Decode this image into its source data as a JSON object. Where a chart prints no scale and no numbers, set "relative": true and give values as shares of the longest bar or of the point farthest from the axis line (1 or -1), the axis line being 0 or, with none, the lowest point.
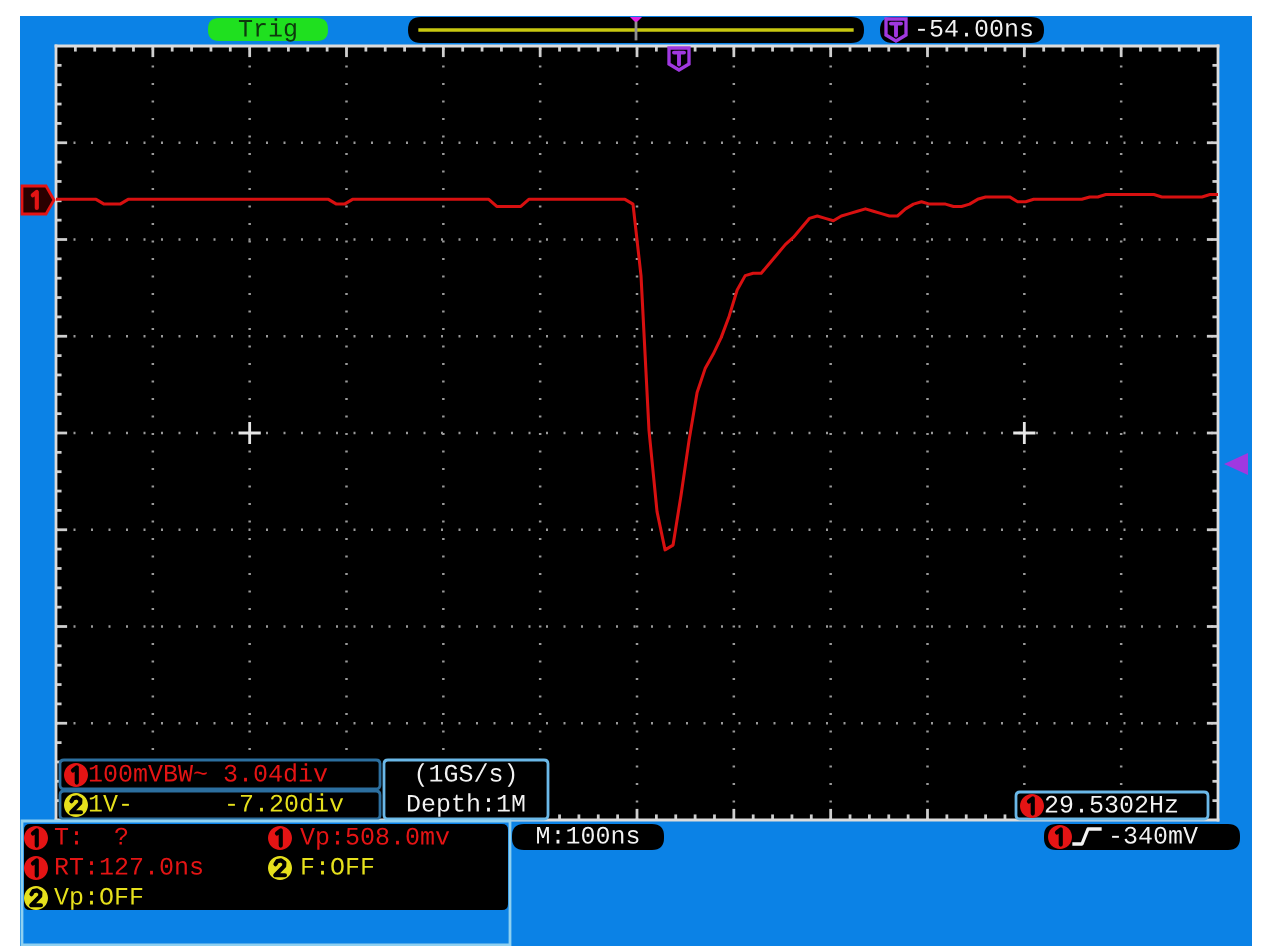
{
  "chart_data": {
    "type": "line",
    "relative": true,
    "grid": true,
    "categories": [
      null,
      null,
      null,
      null,
      null,
      null,
      null,
      null,
      null,
      null,
      null,
      null,
      null,
      null,
      null,
      null,
      null,
      null,
      null,
      null,
      null,
      null,
      null,
      null,
      null,
      null,
      null,
      null,
      null,
      null,
      null,
      null,
      null,
      null,
      null,
      null,
      null,
      null,
      null,
      null,
      null,
      null,
      null,
      null,
      null,
      null,
      null,
      null,
      null,
      null,
      null,
      null,
      null,
      null,
      null,
      null,
      null,
      null,
      null,
      null,
      null,
      null,
      null,
      null,
      null,
      null,
      null,
      null,
      null,
      null,
      null,
      null,
      null,
      null,
      null,
      null,
      null,
      null,
      null,
      null,
      null,
      null,
      null,
      null,
      null,
      null,
      null,
      null,
      null,
      null,
      null,
      null,
      null,
      null,
      null,
      null,
      null,
      null,
      null,
      null,
      null,
      null,
      null,
      null,
      null,
      null,
      null,
      null,
      null,
      null,
      null,
      null,
      null,
      null,
      null,
      null,
      null,
      null,
      null,
      null,
      null,
      null,
      null,
      null,
      null,
      null,
      null,
      null,
      null,
      null,
      null,
      null,
      null,
      null,
      null,
      null,
      null,
      null,
      null,
      null,
      null,
      null,
      null,
      null,
      null,
      null
    ],
    "series": [
      {
        "color": "#d81010",
        "values": [
          0.98,
          0.98,
          0.98,
          0.98,
          0.98,
          0.98,
          0.96,
          0.96,
          0.96,
          0.98,
          0.98,
          0.98,
          0.98,
          0.98,
          0.98,
          0.98,
          0.98,
          0.98,
          0.98,
          0.98,
          0.98,
          0.98,
          0.98,
          0.98,
          0.98,
          0.98,
          0.98,
          0.98,
          0.98,
          0.98,
          0.98,
          0.98,
          0.98,
          0.98,
          0.98,
          0.96,
          0.96,
          0.98,
          0.98,
          0.98,
          0.98,
          0.98,
          0.98,
          0.98,
          0.98,
          0.98,
          0.98,
          0.98,
          0.98,
          0.98,
          0.98,
          0.98,
          0.98,
          0.98,
          0.98,
          0.95,
          0.95,
          0.95,
          0.95,
          0.98,
          0.98,
          0.98,
          0.98,
          0.98,
          0.98,
          0.98,
          0.98,
          0.98,
          0.98,
          0.98,
          0.98,
          0.98,
          0.96,
          0.66,
          0.01,
          -0.33,
          -0.49,
          -0.47,
          -0.26,
          -0.03,
          0.17,
          0.27,
          0.33,
          0.4,
          0.49,
          0.6,
          0.66,
          0.67,
          0.67,
          0.71,
          0.75,
          0.79,
          0.82,
          0.86,
          0.9,
          0.91,
          0.9,
          0.89,
          0.91,
          0.92,
          0.93,
          0.94,
          0.93,
          0.92,
          0.91,
          0.91,
          0.94,
          0.96,
          0.97,
          0.96,
          0.96,
          0.96,
          0.95,
          0.95,
          0.96,
          0.98,
          0.99,
          0.99,
          0.99,
          0.99,
          0.97,
          0.97,
          0.98,
          0.98,
          0.98,
          0.98,
          0.98,
          0.98,
          0.98,
          0.99,
          0.99,
          1.0,
          1.0,
          1.0,
          1.0,
          1.0,
          1.0,
          1.0,
          0.99,
          0.99,
          0.99,
          0.99,
          0.99,
          0.99,
          1.0,
          1.0
        ]
      }
    ],
    "annotations": [
      "Trig",
      "-54.00ns",
      "100mVBW~ 3.04div",
      "1V-",
      "-7.20div",
      "(1GS/s)",
      "Depth:1M",
      "29.5302Hz",
      "T:  ?",
      "Vp:508.0mv",
      "RT:127.0ns",
      "F:OFF",
      "Vp:OFF",
      "M:100ns",
      "-340mV"
    ]
  }
}
